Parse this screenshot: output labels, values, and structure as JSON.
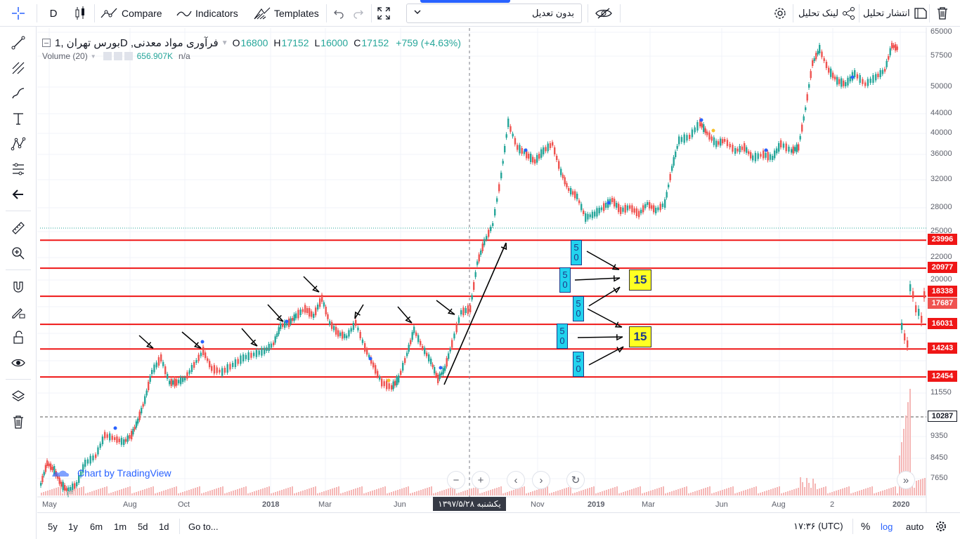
{
  "toolbar": {
    "interval": "D",
    "compare": "Compare",
    "indicators": "Indicators",
    "templates": "Templates",
    "adjustment": "بدون تعدیل",
    "share_link": "لینک تحلیل",
    "publish": "انتشار تحلیل"
  },
  "legend": {
    "symbol": "بورس تهران ,1D ,فرآوری مواد معدنی",
    "o_label": "O",
    "o_value": "16800",
    "h_label": "H",
    "h_value": "17152",
    "l_label": "L",
    "l_value": "16000",
    "c_label": "C",
    "c_value": "17152",
    "change": "+759 (+4.63%)",
    "volume_label": "Volume (20)",
    "volume_value": "656.907K",
    "volume_extra": "n/a"
  },
  "price_axis": {
    "ticks": [
      "65000",
      "57500",
      "50000",
      "44000",
      "40000",
      "36000",
      "32000",
      "28000",
      "25000",
      "22000",
      "20000",
      "11550",
      "9350",
      "8450",
      "7650"
    ],
    "tags": [
      {
        "value": "23996",
        "color": "#ef1616"
      },
      {
        "value": "20977",
        "color": "#ef1616"
      },
      {
        "value": "18338",
        "color": "#ef1616"
      },
      {
        "value": "17687",
        "color": "#ef5350"
      },
      {
        "value": "16031",
        "color": "#ef1616"
      },
      {
        "value": "14243",
        "color": "#ef1616"
      },
      {
        "value": "12454",
        "color": "#ef1616"
      },
      {
        "value": "10287",
        "color": "#131722"
      }
    ]
  },
  "date_axis": {
    "ticks": [
      "May",
      "Aug",
      "Oct",
      "2018",
      "Mar",
      "Jun",
      "Nov",
      "2019",
      "Mar",
      "Jun",
      "Aug",
      "2",
      "2020"
    ],
    "crosshair_label": "یکشنبه ۱۳۹۷/۵/۲۸"
  },
  "annotations": {
    "box50": [
      "5",
      "0"
    ],
    "box15": "15"
  },
  "watermark": "Chart by TradingView",
  "bottom_bar": {
    "ranges": [
      "5y",
      "1y",
      "6m",
      "1m",
      "5d",
      "1d"
    ],
    "goto": "Go to...",
    "time": "۱۷:۳۶ (UTC)",
    "percent": "%",
    "log": "log",
    "auto": "auto"
  },
  "colors": {
    "up": "#26a69a",
    "down": "#ef5350",
    "level_line": "#ef1616",
    "accent": "#2962ff"
  }
}
